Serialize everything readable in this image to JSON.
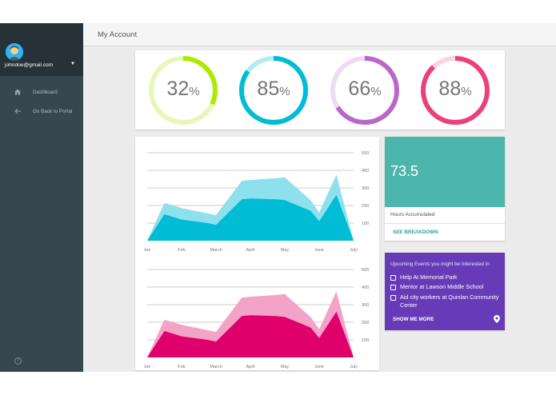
{
  "sidebar": {
    "email": "johndoe@gmail.com",
    "items": [
      {
        "label": "Dashboard",
        "icon": "home-icon"
      },
      {
        "label": "Go Back to Portal",
        "icon": "arrow-back-icon"
      }
    ],
    "help_icon": "help-icon"
  },
  "header": {
    "title": "My Account"
  },
  "gauges": [
    {
      "value": "32",
      "symbol": "%",
      "fraction": 0.32,
      "color": "#aeea00",
      "track": "#e6f7b8"
    },
    {
      "value": "85",
      "symbol": "%",
      "fraction": 0.85,
      "color": "#00bcd4",
      "track": "#b2ebf2"
    },
    {
      "value": "66",
      "symbol": "%",
      "fraction": 0.66,
      "color": "#ba68c8",
      "track": "#efdcf3"
    },
    {
      "value": "88",
      "symbol": "%",
      "fraction": 0.88,
      "color": "#ec407a",
      "track": "#fad4e2"
    }
  ],
  "chart_data": [
    {
      "type": "area",
      "categories": [
        "Jan",
        "Feb",
        "March",
        "April",
        "May",
        "June",
        "July"
      ],
      "ylim": [
        0,
        500
      ],
      "yticks": [
        100,
        200,
        300,
        400,
        500
      ],
      "x": [
        0,
        0.5,
        1,
        1.75,
        2,
        2.75,
        3,
        3.75,
        4,
        4.75,
        5,
        5.5,
        6
      ],
      "series": [
        {
          "values": [
            0,
            215,
            185,
            155,
            145,
            340,
            345,
            355,
            360,
            230,
            160,
            375,
            0
          ],
          "color": "#8ee0ec"
        },
        {
          "values": [
            0,
            150,
            120,
            100,
            90,
            235,
            240,
            235,
            230,
            170,
            110,
            260,
            0
          ],
          "color": "#00bcd4"
        }
      ],
      "grid": true
    },
    {
      "type": "area",
      "categories": [
        "Jan",
        "Feb",
        "March",
        "April",
        "May",
        "June",
        "July"
      ],
      "ylim": [
        0,
        500
      ],
      "yticks": [
        100,
        200,
        300,
        400,
        500
      ],
      "x": [
        0,
        0.5,
        1,
        1.75,
        2,
        2.75,
        3,
        3.75,
        4,
        4.75,
        5,
        5.5,
        6
      ],
      "series": [
        {
          "values": [
            0,
            215,
            185,
            155,
            145,
            340,
            345,
            355,
            360,
            230,
            160,
            375,
            0
          ],
          "color": "#f3a3c7"
        },
        {
          "values": [
            0,
            150,
            120,
            100,
            90,
            235,
            240,
            235,
            230,
            170,
            110,
            260,
            0
          ],
          "color": "#e0006c"
        }
      ],
      "grid": true
    }
  ],
  "hours": {
    "value": "73.5",
    "label": "Hours Accumulated",
    "link": "SEE BREAKDOWN"
  },
  "events": {
    "heading": "Upcoming Events you might be Interested In",
    "items": [
      "Help At Memorial Park",
      "Mentor at Lawson Middle School",
      "Aid city workers at Quinlan Community Center"
    ],
    "more": "SHOW ME MORE",
    "pin_icon": "location-pin-icon"
  }
}
